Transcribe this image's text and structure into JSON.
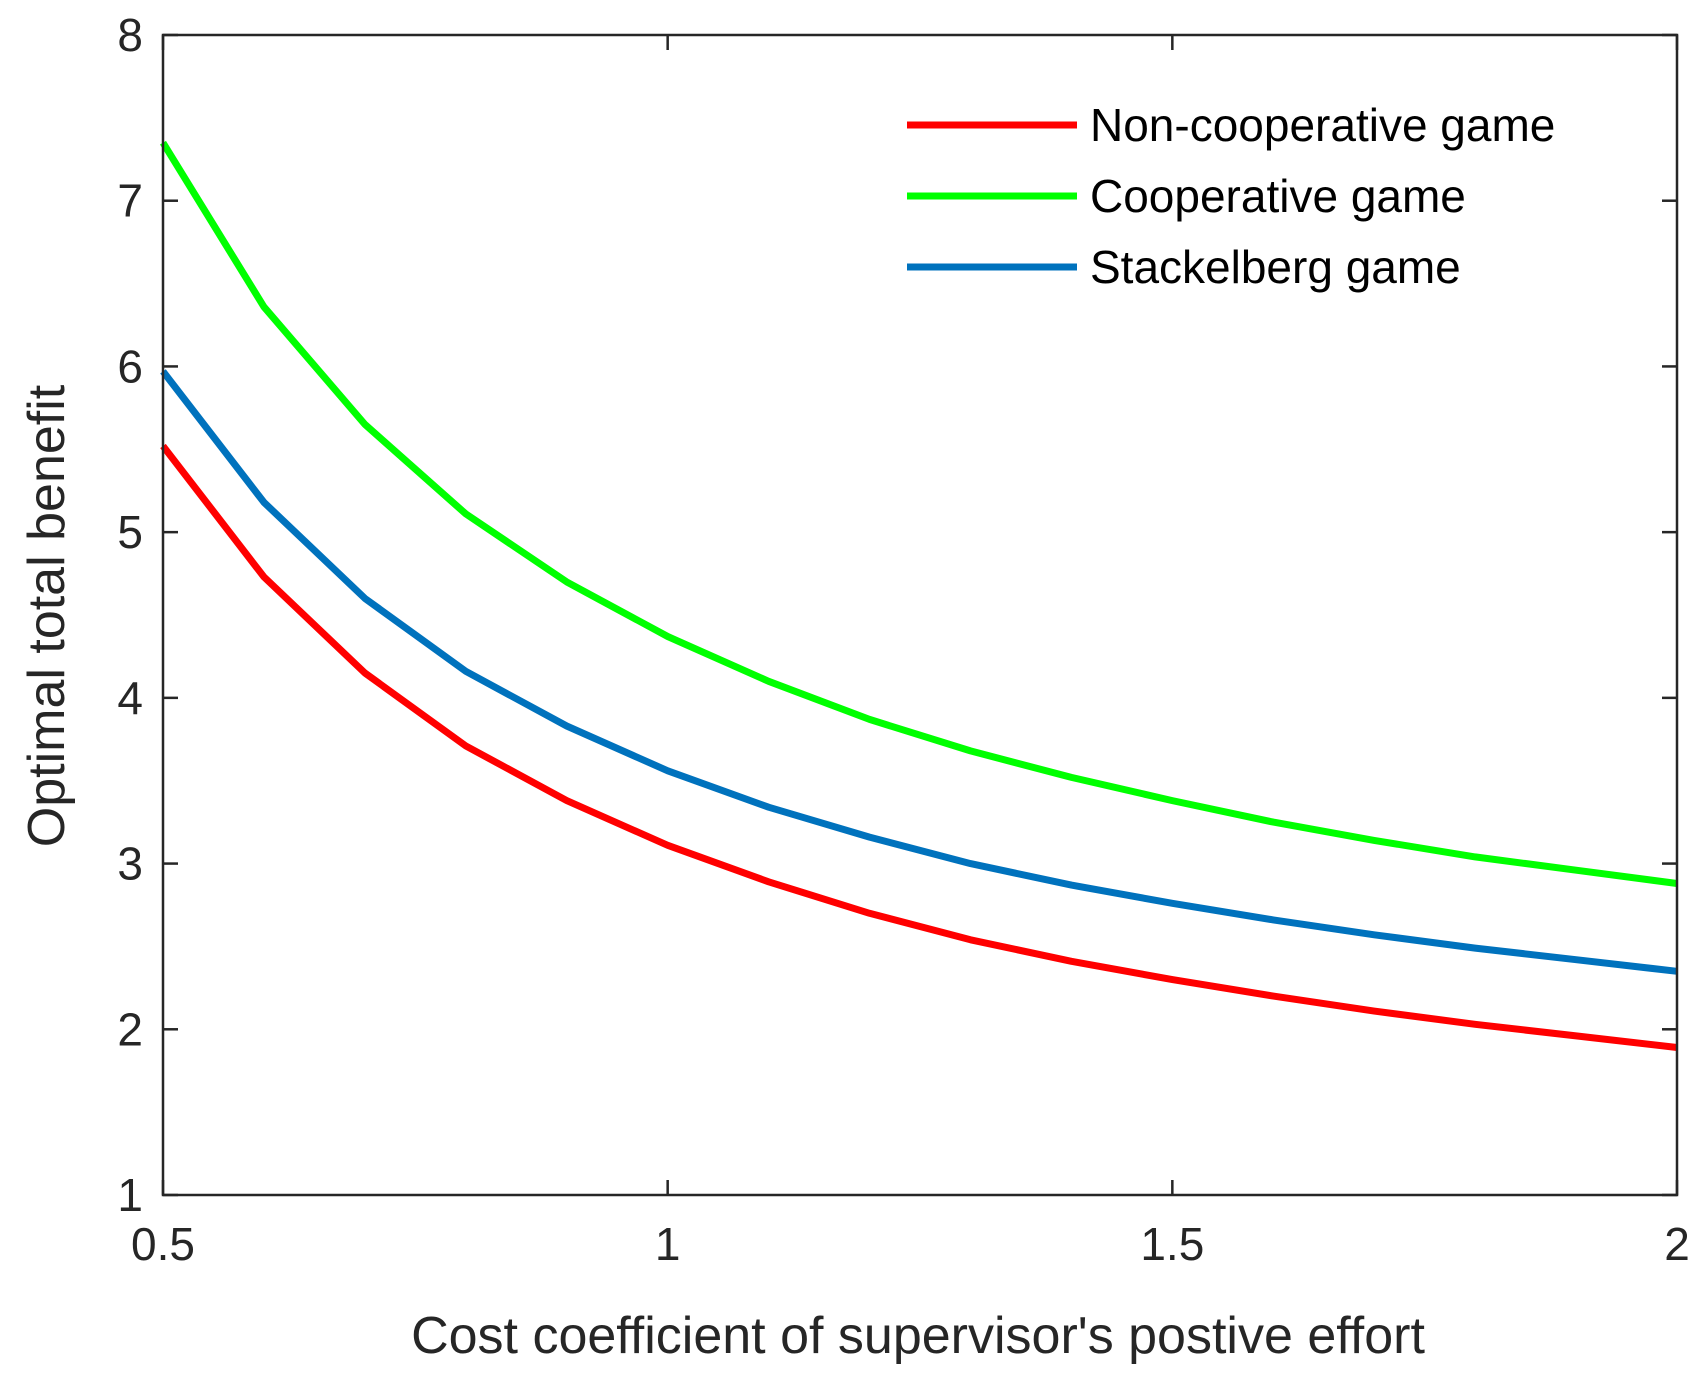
{
  "chart_data": {
    "type": "line",
    "title": "",
    "xlabel": "Cost coefficient of supervisor's postive effort",
    "ylabel": "Optimal total benefit",
    "xlim": [
      0.5,
      2
    ],
    "ylim": [
      1,
      8
    ],
    "xticks": [
      0.5,
      1,
      1.5,
      2
    ],
    "xtick_labels": [
      "0.5",
      "1",
      "1.5",
      "2"
    ],
    "yticks": [
      1,
      2,
      3,
      4,
      5,
      6,
      7,
      8
    ],
    "ytick_labels": [
      "1",
      "2",
      "3",
      "4",
      "5",
      "6",
      "7",
      "8"
    ],
    "grid": false,
    "legend_position": "top-right",
    "x": [
      0.5,
      0.6,
      0.7,
      0.8,
      0.9,
      1.0,
      1.1,
      1.2,
      1.3,
      1.4,
      1.5,
      1.6,
      1.7,
      1.8,
      1.9,
      2.0
    ],
    "series": [
      {
        "name": "Non-cooperative game",
        "color": "#ff0000",
        "values": [
          5.52,
          4.73,
          4.15,
          3.71,
          3.38,
          3.11,
          2.89,
          2.7,
          2.54,
          2.41,
          2.3,
          2.2,
          2.11,
          2.03,
          1.96,
          1.89
        ]
      },
      {
        "name": "Cooperative game",
        "color": "#00ff00",
        "values": [
          7.35,
          6.36,
          5.65,
          5.11,
          4.7,
          4.37,
          4.1,
          3.87,
          3.68,
          3.52,
          3.38,
          3.25,
          3.14,
          3.04,
          2.96,
          2.88
        ]
      },
      {
        "name": "Stackelberg game",
        "color": "#0072bd",
        "values": [
          5.97,
          5.18,
          4.6,
          4.16,
          3.83,
          3.56,
          3.34,
          3.16,
          3.0,
          2.87,
          2.76,
          2.66,
          2.57,
          2.49,
          2.42,
          2.35
        ]
      }
    ]
  }
}
